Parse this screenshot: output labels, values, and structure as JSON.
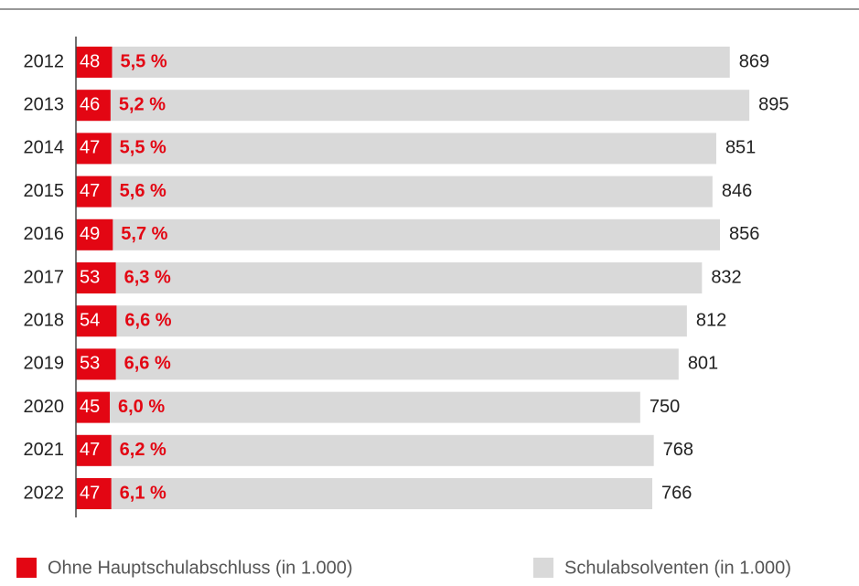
{
  "chart_data": {
    "type": "bar",
    "categories": [
      "2012",
      "2013",
      "2014",
      "2015",
      "2016",
      "2017",
      "2018",
      "2019",
      "2020",
      "2021",
      "2022"
    ],
    "series": [
      {
        "name": "Schulabsolventen (in 1.000)",
        "color": "#d9d9d9",
        "values": [
          869,
          895,
          851,
          846,
          856,
          832,
          812,
          801,
          750,
          768,
          766
        ]
      },
      {
        "name": "Ohne Hauptschulabschluss (in 1.000)",
        "color": "#e30613",
        "values": [
          48,
          46,
          47,
          47,
          49,
          53,
          54,
          53,
          45,
          47,
          47
        ]
      }
    ],
    "share": {
      "values": [
        5.5,
        5.2,
        5.5,
        5.6,
        5.7,
        6.3,
        6.6,
        6.6,
        6.0,
        6.2,
        6.1
      ],
      "value_labels": [
        "5,5 %",
        "5,2 %",
        "5,5 %",
        "5,6 %",
        "5,7 %",
        "6,3 %",
        "6,6 %",
        "6,6 %",
        "6,0 %",
        "6,2 %",
        "6,1 %"
      ]
    },
    "legend": "bottom"
  }
}
